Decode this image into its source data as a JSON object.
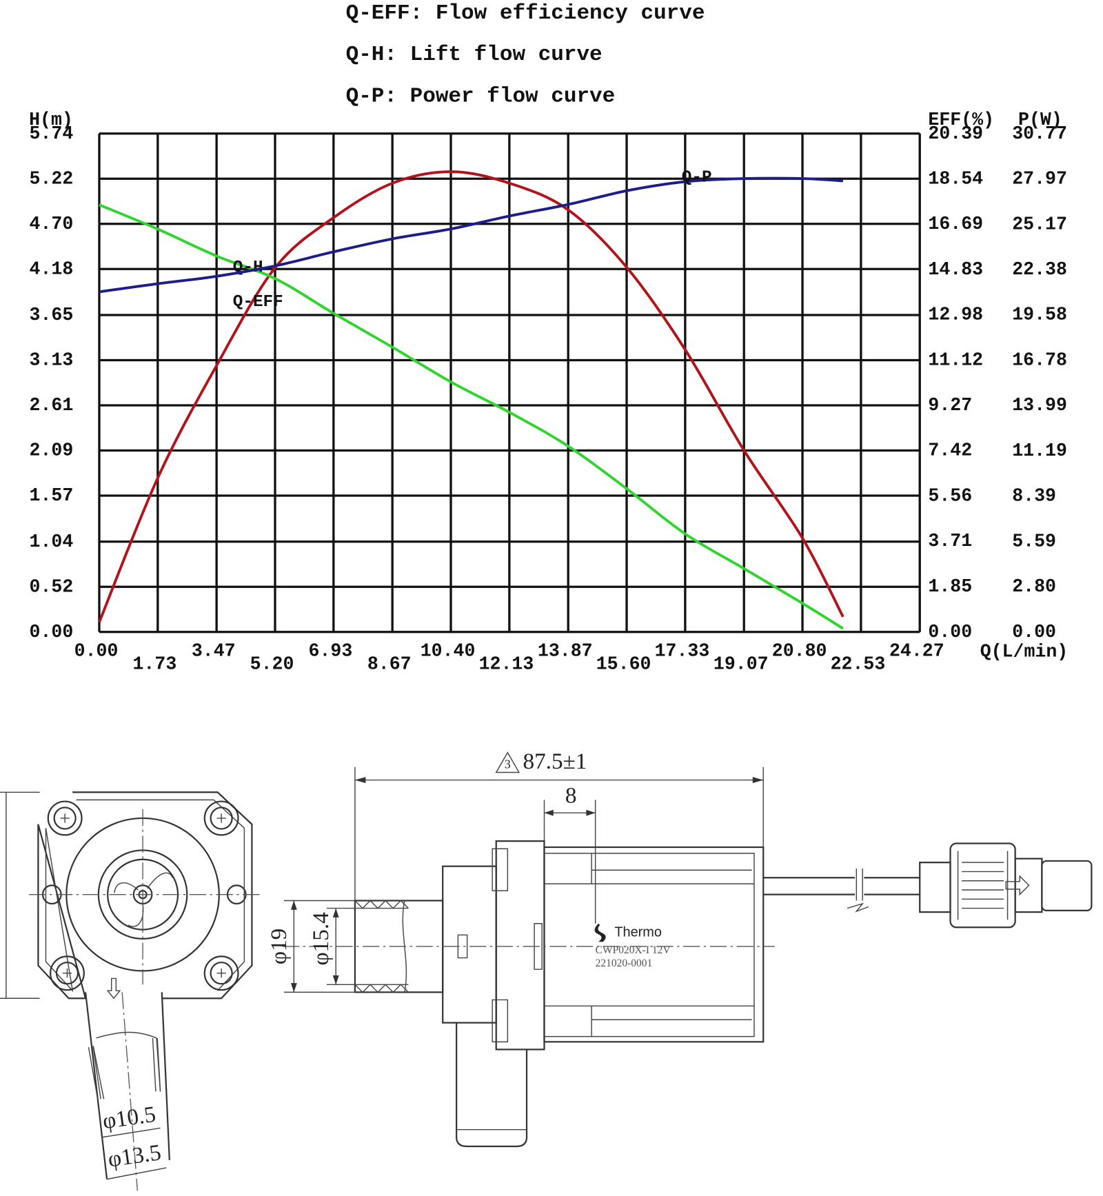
{
  "chart_data": {
    "type": "line",
    "x": [
      0,
      1.73,
      3.47,
      5.2,
      6.93,
      8.67,
      10.4,
      12.13,
      13.87,
      15.6,
      17.33,
      19.07,
      20.8,
      22.0
    ],
    "series": [
      {
        "name": "Q-EFF: Flow efficiency curve",
        "label": "Q-EFF",
        "color": "#b3121a",
        "axis": "y2",
        "values": [
          0.4,
          6.3,
          10.9,
          14.9,
          16.95,
          18.36,
          18.83,
          18.36,
          17.27,
          14.92,
          11.55,
          7.43,
          3.84,
          0.62
        ]
      },
      {
        "name": "Q-H: Lift flow curve",
        "label": "Q-H",
        "color": "#2fd42f",
        "values": [
          4.92,
          4.64,
          4.33,
          4.07,
          3.67,
          3.28,
          2.88,
          2.53,
          2.14,
          1.65,
          1.13,
          0.73,
          0.33,
          0.04
        ]
      },
      {
        "name": "Q-P: Power flow curve",
        "label": "Q-P",
        "color": "#1c1c8a",
        "axis": "y3",
        "values": [
          21.0,
          21.5,
          21.96,
          22.6,
          23.47,
          24.27,
          24.88,
          25.68,
          26.39,
          27.24,
          27.8,
          27.99,
          27.99,
          27.85
        ]
      }
    ],
    "xlabel": "Q(L/min)",
    "ylabel": "H(m)",
    "y2label": "EFF(%)",
    "y3label": "P(W)",
    "xlim": [
      0,
      24.27
    ],
    "xticks": [
      {
        "value": 0,
        "label": "0.00"
      },
      1.73,
      3.47,
      {
        "value": 5.2,
        "label": "5.20"
      },
      6.93,
      8.67,
      {
        "value": 10.4,
        "label": "10.40"
      },
      12.13,
      13.87,
      {
        "value": 15.6,
        "label": "15.60"
      },
      17.33,
      19.07,
      {
        "value": 20.8,
        "label": "20.80"
      },
      22.53,
      24.27
    ],
    "ylim": [
      0,
      5.74
    ],
    "yticks": [
      {
        "value": 0,
        "label": "0.00"
      },
      0.52,
      1.04,
      1.57,
      2.09,
      2.61,
      3.13,
      3.65,
      4.18,
      {
        "value": 4.7,
        "label": "4.70"
      },
      5.22,
      5.74
    ],
    "y2lim": [
      0,
      20.39
    ],
    "y2ticks": [
      {
        "value": 0,
        "label": "0.00"
      },
      1.85,
      3.71,
      5.56,
      7.42,
      9.27,
      11.12,
      12.98,
      14.83,
      16.69,
      18.54,
      20.39
    ],
    "y3lim": [
      0,
      30.77
    ],
    "y3ticks": [
      {
        "value": 0,
        "label": "0.00"
      },
      {
        "value": 2.8,
        "label": "2.80"
      },
      5.59,
      8.39,
      11.19,
      13.99,
      16.78,
      19.58,
      22.38,
      25.17,
      27.97,
      30.77
    ],
    "grid": true
  },
  "drawing": {
    "revision_mark": "3",
    "overall_length": "87.5±1",
    "flange_offset": "8",
    "inlet_outer": "φ19",
    "inlet_inner": "φ15.4",
    "outlet_inner": "φ10.5",
    "outlet_outer": "φ13.5",
    "brand": "Thermo",
    "model": "CWP020X-I 12V",
    "serial": "221020-0001"
  }
}
